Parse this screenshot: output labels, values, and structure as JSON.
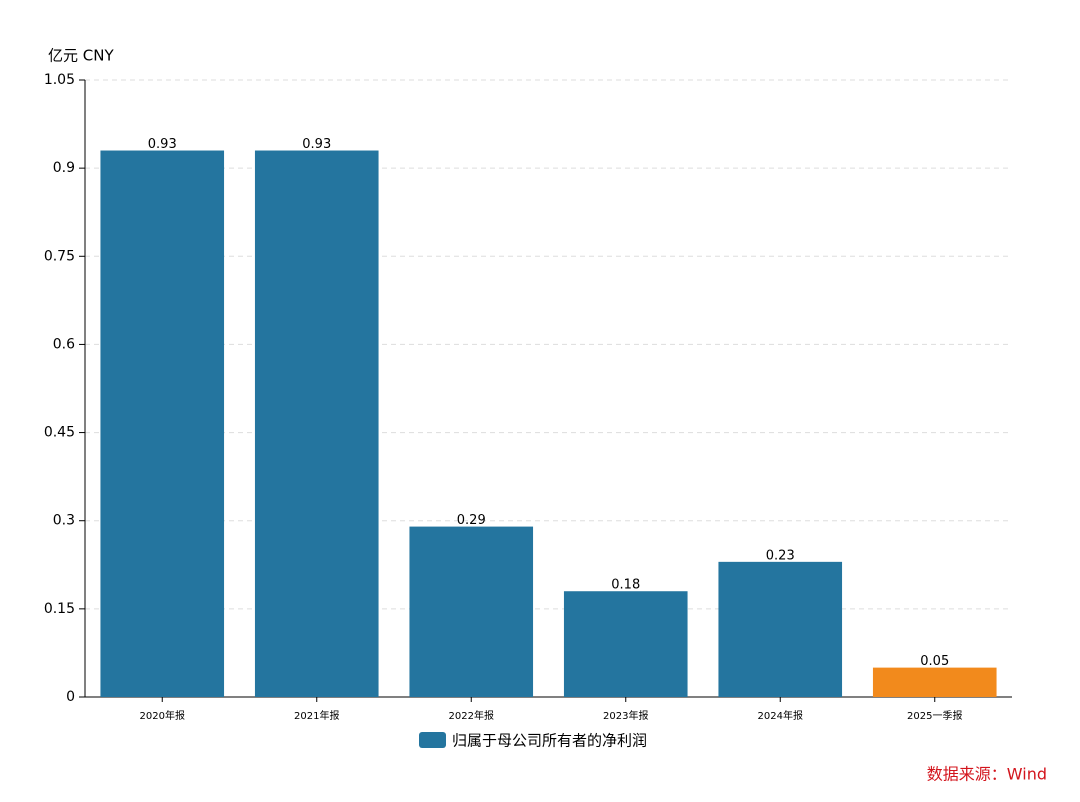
{
  "chart_data": {
    "type": "bar",
    "unit_label": "亿元  CNY",
    "categories": [
      "2020年报",
      "2021年报",
      "2022年报",
      "2023年报",
      "2024年报",
      "2025一季报"
    ],
    "series": [
      {
        "name": "归属于母公司所有者的净利润",
        "color": "#24759f",
        "values": [
          0.93,
          0.93,
          0.29,
          0.18,
          0.23,
          0.05
        ],
        "point_colors": [
          "#24759f",
          "#24759f",
          "#24759f",
          "#24759f",
          "#24759f",
          "#f28a1c"
        ]
      }
    ],
    "ylim": [
      0,
      1.05
    ],
    "yticks": [
      0,
      0.15,
      0.3,
      0.45,
      0.6,
      0.75,
      0.9,
      1.05
    ],
    "grid": true,
    "source": "数据来源：Wind"
  }
}
